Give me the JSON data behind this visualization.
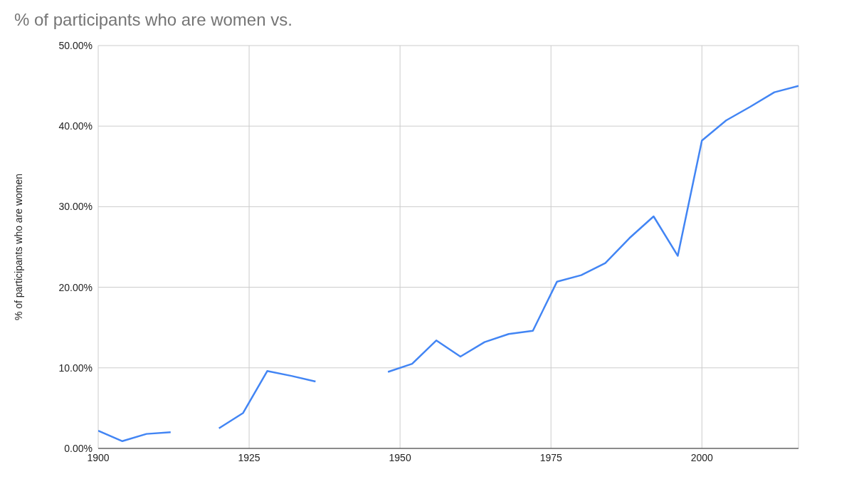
{
  "chart_data": {
    "type": "line",
    "title": "% of participants who are women vs.",
    "ylabel": "% of participants who are women",
    "x": [
      1900,
      1904,
      1908,
      1912,
      1916,
      1920,
      1924,
      1928,
      1932,
      1936,
      1940,
      1944,
      1948,
      1952,
      1956,
      1960,
      1964,
      1968,
      1972,
      1976,
      1980,
      1984,
      1988,
      1992,
      1996,
      2000,
      2004,
      2008,
      2012,
      2016
    ],
    "series": [
      {
        "color": "#4285f4",
        "values": [
          2.2,
          0.9,
          1.8,
          2.0,
          null,
          2.5,
          4.4,
          9.6,
          9.0,
          8.3,
          null,
          null,
          9.5,
          10.5,
          13.4,
          11.4,
          13.2,
          14.2,
          14.6,
          20.7,
          21.5,
          23.0,
          26.1,
          28.8,
          23.9,
          38.2,
          40.7,
          42.4,
          44.2,
          45.0
        ]
      }
    ],
    "xlim": [
      1900,
      2016
    ],
    "xticks": [
      1900,
      1925,
      1950,
      1975,
      2000
    ],
    "ylim": [
      0,
      50
    ],
    "yticks": [
      {
        "value": 0,
        "label": "0.00%"
      },
      {
        "value": 10,
        "label": "10.00%"
      },
      {
        "value": 20,
        "label": "20.00%"
      },
      {
        "value": 30,
        "label": "30.00%"
      },
      {
        "value": 40,
        "label": "40.00%"
      },
      {
        "value": 50,
        "label": "50.00%"
      }
    ],
    "grid": true,
    "legend": false,
    "marker": "none",
    "line_style": "solid"
  }
}
